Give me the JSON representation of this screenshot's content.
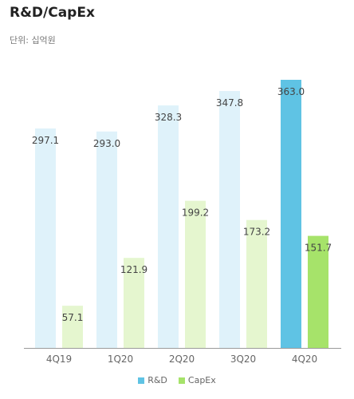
{
  "chart_data": {
    "type": "bar",
    "title": "R&D/CapEx",
    "unit_label": "단위: 십억원",
    "categories": [
      "4Q19",
      "1Q20",
      "2Q20",
      "3Q20",
      "4Q20"
    ],
    "series": [
      {
        "name": "R&D",
        "values": [
          297.1,
          293.0,
          328.3,
          347.8,
          363.0
        ],
        "color": "#dff2fa",
        "highlight_color": "#5fc3e4"
      },
      {
        "name": "CapEx",
        "values": [
          57.1,
          121.9,
          199.2,
          173.2,
          151.7
        ],
        "color": "#e5f6cf",
        "highlight_color": "#a6e36a"
      }
    ],
    "highlight_category": "4Q20",
    "legend_position": "bottom-right"
  }
}
